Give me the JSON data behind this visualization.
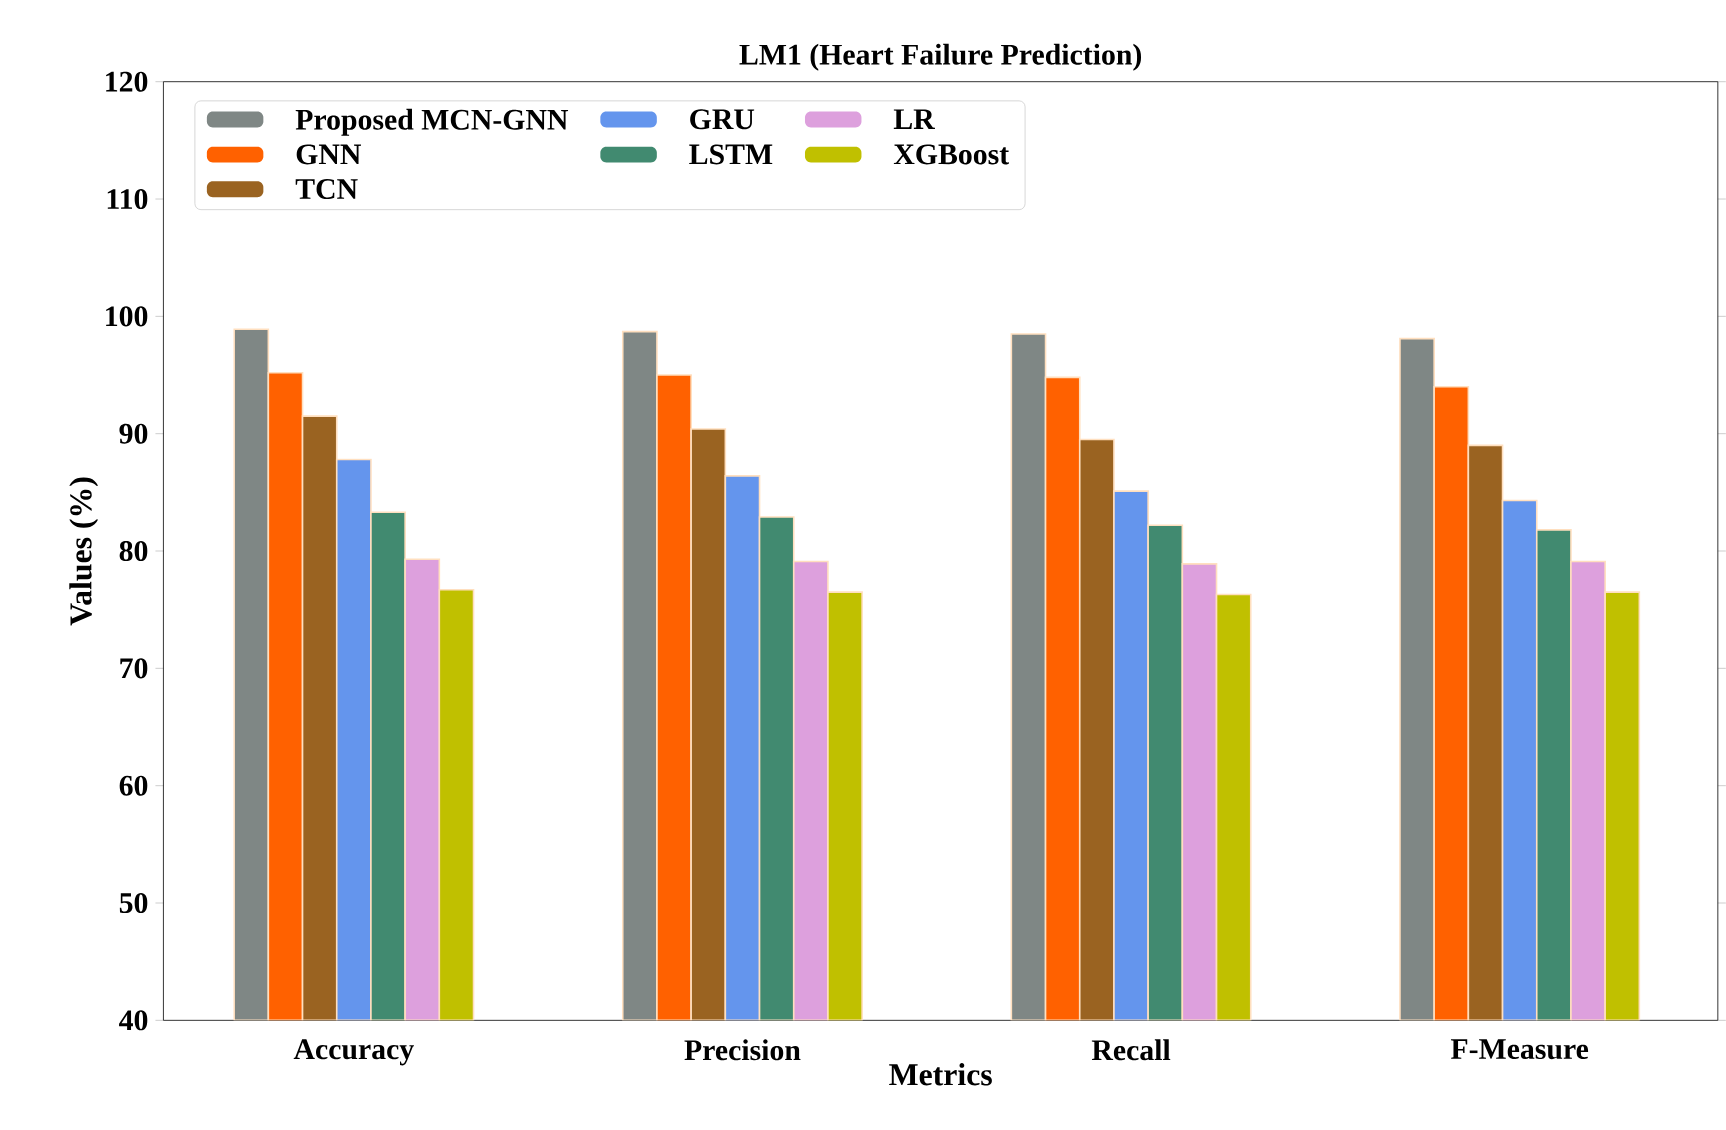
{
  "chart_data": {
    "type": "bar",
    "title": "LM1 (Heart Failure Prediction)",
    "xlabel": "Metrics",
    "ylabel": "Values (%)",
    "categories": [
      "Accuracy",
      "Precision",
      "Recall",
      "F-Measure"
    ],
    "series": [
      {
        "name": "Proposed MCN-GNN",
        "color": "#7f8785",
        "values": [
          98.9,
          98.7,
          98.5,
          98.1
        ]
      },
      {
        "name": "GNN",
        "color": "#ff6100",
        "values": [
          95.2,
          95.0,
          94.8,
          94.0
        ]
      },
      {
        "name": "TCN",
        "color": "#9a6321",
        "values": [
          91.5,
          90.4,
          89.5,
          89.0
        ]
      },
      {
        "name": "GRU",
        "color": "#6495ed",
        "values": [
          87.8,
          86.4,
          85.1,
          84.3
        ]
      },
      {
        "name": "LSTM",
        "color": "#418a70",
        "values": [
          83.3,
          82.9,
          82.2,
          81.8
        ]
      },
      {
        "name": "LR",
        "color": "#dda0dd",
        "values": [
          79.3,
          79.1,
          78.9,
          79.1
        ]
      },
      {
        "name": "XGBoost",
        "color": "#c0c000",
        "values": [
          76.7,
          76.5,
          76.3,
          76.5
        ]
      }
    ],
    "ylim": [
      40,
      120
    ],
    "yticks": [
      40,
      50,
      60,
      70,
      80,
      90,
      100,
      110,
      120
    ],
    "grid": false,
    "legend": "top left"
  }
}
